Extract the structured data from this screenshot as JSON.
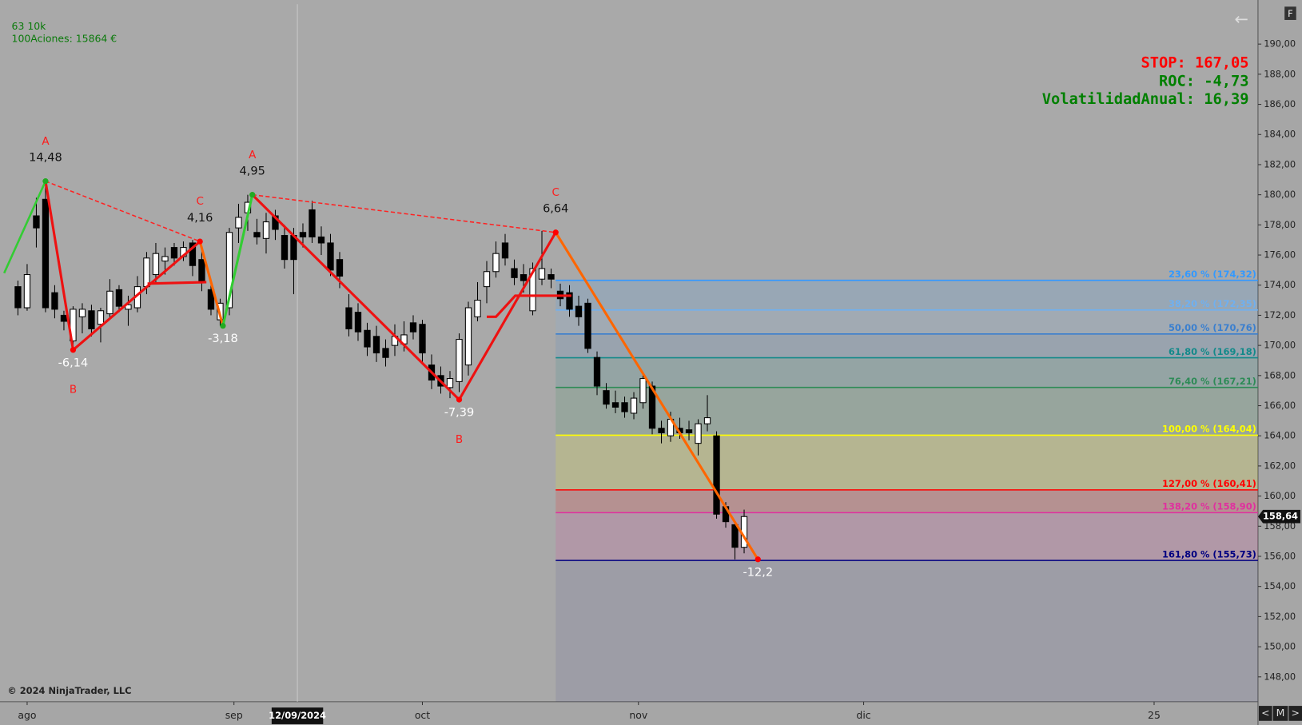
{
  "chart_data": {
    "type": "candlestick",
    "info": [
      "63 10k",
      "100Aciones: 15864 €"
    ],
    "stats": [
      {
        "text": "STOP: 167,05",
        "color": "#ff0000"
      },
      {
        "text": "ROC: -4,73",
        "color": "#008000"
      },
      {
        "text": "VolatilidadAnual: 16,39",
        "color": "#008000"
      }
    ],
    "copyright": "© 2024 NinjaTrader, LLC",
    "ui": {
      "nav": [
        "<",
        "M",
        ">"
      ],
      "f": "F",
      "back": "←"
    },
    "xlim": [
      -1.5,
      134.9
    ],
    "xticks": [
      {
        "value": 1,
        "label": "ago"
      },
      {
        "value": 23.5,
        "label": "sep"
      },
      {
        "value": 44,
        "label": "oct"
      },
      {
        "value": 67.5,
        "label": "nov"
      },
      {
        "value": 92,
        "label": "dic"
      },
      {
        "value": 123.6,
        "label": "25"
      }
    ],
    "cursor": {
      "x": 30.4,
      "label": "12/09/2024"
    },
    "ylim": [
      146.35,
      192.65
    ],
    "yticks": [
      {
        "value": 148,
        "label": "148,00"
      },
      {
        "value": 150,
        "label": "150,00"
      },
      {
        "value": 152,
        "label": "152,00"
      },
      {
        "value": 154,
        "label": "154,00"
      },
      {
        "value": 156,
        "label": "156,00"
      },
      {
        "value": 158,
        "label": "158,00"
      },
      {
        "value": 160,
        "label": "160,00"
      },
      {
        "value": 162,
        "label": "162,00"
      },
      {
        "value": 164,
        "label": "164,00"
      },
      {
        "value": 166,
        "label": "166,00"
      },
      {
        "value": 168,
        "label": "168,00"
      },
      {
        "value": 170,
        "label": "170,00"
      },
      {
        "value": 172,
        "label": "172,00"
      },
      {
        "value": 174,
        "label": "174,00"
      },
      {
        "value": 176,
        "label": "176,00"
      },
      {
        "value": 178,
        "label": "178,00"
      },
      {
        "value": 180,
        "label": "180,00"
      },
      {
        "value": 182,
        "label": "182,00"
      },
      {
        "value": 184,
        "label": "184,00"
      },
      {
        "value": 186,
        "label": "186,00"
      },
      {
        "value": 188,
        "label": "188,00"
      },
      {
        "value": 190,
        "label": "190,00"
      }
    ],
    "last_price": {
      "value": 158.64,
      "label": "158,64"
    },
    "candles": {
      "x": [
        0,
        1,
        2,
        3,
        4,
        5,
        6,
        7,
        8,
        9,
        10,
        11,
        12,
        13,
        14,
        15,
        16,
        17,
        18,
        19,
        20,
        21,
        22,
        23,
        24,
        25,
        26,
        27,
        28,
        29,
        30,
        31,
        32,
        33,
        34,
        35,
        36,
        37,
        38,
        39,
        40,
        41,
        42,
        43,
        44,
        45,
        46,
        47,
        48,
        49,
        50,
        51,
        52,
        53,
        54,
        55,
        56,
        57,
        58,
        59,
        60,
        61,
        62,
        63,
        64,
        65,
        66,
        67,
        68,
        69,
        70,
        71,
        72,
        73,
        74,
        75,
        76,
        77,
        78,
        79
      ],
      "open": [
        173.9,
        172.5,
        178.6,
        179.7,
        173.5,
        172.0,
        170.3,
        171.9,
        172.3,
        171.4,
        172.1,
        173.7,
        172.4,
        172.5,
        173.9,
        174.7,
        175.6,
        176.5,
        175.9,
        176.8,
        175.7,
        173.7,
        171.7,
        172.5,
        177.8,
        178.8,
        177.5,
        177.1,
        178.6,
        177.3,
        177.3,
        177.5,
        179.0,
        177.2,
        176.8,
        175.7,
        172.5,
        172.2,
        171.0,
        170.6,
        169.8,
        170.0,
        170.1,
        171.5,
        171.4,
        168.7,
        168.0,
        167.2,
        167.6,
        168.7,
        171.9,
        173.9,
        174.9,
        176.8,
        175.1,
        174.7,
        172.3,
        174.4,
        174.7,
        173.6,
        173.5,
        172.6,
        172.8,
        169.2,
        167.0,
        166.2,
        166.2,
        165.5,
        166.2,
        167.3,
        164.5,
        164.0,
        164.5,
        164.4,
        163.5,
        164.8,
        164.0,
        159.3,
        158.1,
        156.6
      ],
      "high": [
        174.3,
        175.4,
        179.8,
        180.9,
        174.0,
        172.3,
        172.6,
        172.8,
        172.7,
        172.5,
        174.4,
        174.0,
        173.3,
        174.6,
        176.2,
        176.8,
        176.5,
        176.8,
        176.9,
        177.0,
        176.6,
        174.0,
        173.1,
        177.8,
        179.4,
        180.0,
        178.4,
        178.8,
        179.0,
        178.0,
        177.8,
        178.1,
        179.6,
        177.9,
        177.4,
        176.2,
        173.4,
        172.8,
        171.5,
        171.3,
        170.4,
        171.4,
        171.6,
        172.0,
        171.7,
        169.4,
        168.6,
        168.3,
        170.8,
        172.9,
        174.2,
        175.6,
        176.9,
        177.4,
        175.7,
        175.4,
        175.5,
        177.6,
        175.1,
        174.1,
        174.0,
        173.3,
        173.1,
        169.6,
        167.5,
        167.0,
        166.6,
        166.9,
        168.1,
        167.6,
        165.0,
        165.6,
        165.2,
        165.0,
        165.1,
        166.7,
        164.3,
        159.6,
        158.3,
        159.1
      ],
      "low": [
        172.0,
        172.3,
        176.5,
        172.2,
        171.8,
        171.0,
        169.7,
        170.8,
        170.6,
        170.2,
        171.8,
        172.2,
        171.3,
        172.2,
        173.4,
        174.2,
        174.7,
        175.3,
        175.6,
        174.6,
        173.6,
        172.0,
        171.3,
        172.0,
        176.8,
        177.6,
        176.7,
        176.1,
        177.0,
        175.1,
        173.4,
        176.5,
        176.8,
        176.0,
        174.6,
        173.8,
        170.6,
        170.3,
        169.3,
        168.9,
        168.6,
        169.3,
        169.6,
        170.4,
        168.9,
        167.1,
        166.8,
        166.5,
        166.9,
        168.0,
        171.6,
        172.8,
        174.5,
        175.3,
        174.0,
        173.5,
        172.0,
        174.0,
        173.8,
        172.6,
        171.9,
        171.3,
        169.5,
        166.7,
        165.8,
        165.5,
        165.2,
        165.1,
        165.8,
        164.1,
        163.5,
        163.6,
        163.8,
        163.7,
        162.7,
        164.3,
        158.5,
        157.9,
        155.8,
        156.2
      ],
      "close": [
        172.5,
        174.7,
        177.8,
        172.5,
        172.4,
        171.6,
        172.4,
        172.4,
        171.1,
        172.3,
        173.6,
        172.6,
        172.7,
        173.9,
        175.8,
        176.1,
        175.9,
        175.8,
        176.5,
        175.3,
        174.2,
        172.4,
        172.8,
        177.5,
        178.5,
        179.5,
        177.2,
        178.2,
        177.7,
        175.7,
        175.7,
        177.2,
        177.2,
        176.8,
        175.0,
        174.6,
        171.1,
        170.9,
        169.9,
        169.5,
        169.2,
        170.6,
        170.7,
        170.9,
        169.5,
        167.7,
        167.3,
        167.8,
        170.4,
        172.5,
        173.0,
        174.9,
        176.1,
        175.8,
        174.5,
        174.3,
        175.1,
        175.1,
        174.4,
        173.1,
        172.4,
        171.9,
        169.8,
        167.3,
        166.1,
        165.9,
        165.6,
        166.5,
        167.8,
        164.5,
        164.2,
        165.1,
        164.2,
        164.2,
        164.8,
        165.2,
        158.8,
        158.3,
        156.6,
        158.64
      ]
    },
    "lead_in": {
      "x": -1.5,
      "y": 174.8,
      "color": "#33cc33"
    },
    "pivots": [
      {
        "x": 3,
        "y": 180.9,
        "label": "14,48",
        "letter": "A",
        "color": "#22aa22"
      },
      {
        "x": 6,
        "y": 169.7,
        "label": "-6,14",
        "letter": "B",
        "color": "#ff0000"
      },
      {
        "x": 19.8,
        "y": 176.9,
        "label": "4,16",
        "letter": "C",
        "color": "#ff0000"
      },
      {
        "x": 22.3,
        "y": 171.3,
        "label": "-3,18",
        "color": "#22aa22"
      },
      {
        "x": 25.5,
        "y": 180.0,
        "label": "4,95",
        "letter": "A",
        "color": "#22aa22"
      },
      {
        "x": 48,
        "y": 166.4,
        "label": "-7,39",
        "letter": "B",
        "color": "#ff0000"
      },
      {
        "x": 58.5,
        "y": 177.5,
        "label": "6,64",
        "letter": "C",
        "color": "#ff0000"
      },
      {
        "x": 80.5,
        "y": 155.8,
        "label": "-12,2",
        "color": "#ff0000"
      }
    ],
    "segment_colors": [
      "#ee1111",
      "#ee1111",
      "#ff6600",
      "#33cc33",
      "#ee1111",
      "#ee1111",
      "#ff6600"
    ],
    "dashed_links": [
      [
        0,
        2
      ],
      [
        4,
        6
      ]
    ],
    "flat_lines": [
      {
        "x": [
          14.1,
          20.5
        ],
        "y": [
          174.1,
          174.2
        ]
      },
      {
        "x": [
          51,
          52,
          54.1,
          60.2
        ],
        "y": [
          171.9,
          171.9,
          173.3,
          173.3
        ]
      }
    ],
    "fib_start": 58.5,
    "fib_levels": [
      {
        "value": 174.32,
        "label": "23,60 % (174,32)",
        "color": "#3399ff"
      },
      {
        "value": 172.35,
        "label": "38,20 % (172,35)",
        "color": "#6fb0f0"
      },
      {
        "value": 170.76,
        "label": "50,00 % (170,76)",
        "color": "#3a7fcf"
      },
      {
        "value": 169.18,
        "label": "61,80 % (169,18)",
        "color": "#138a8a"
      },
      {
        "value": 167.21,
        "label": "76,40 % (167,21)",
        "color": "#2e8b57"
      },
      {
        "value": 164.04,
        "label": "100,00 % (164,04)",
        "color": "#ffff00"
      },
      {
        "value": 160.41,
        "label": "127,00 % (160,41)",
        "color": "#ff0000"
      },
      {
        "value": 158.9,
        "label": "138,20 % (158,90)",
        "color": "#e0309f"
      },
      {
        "value": 155.73,
        "label": "161,80 % (155,73)",
        "color": "#000080"
      }
    ]
  }
}
